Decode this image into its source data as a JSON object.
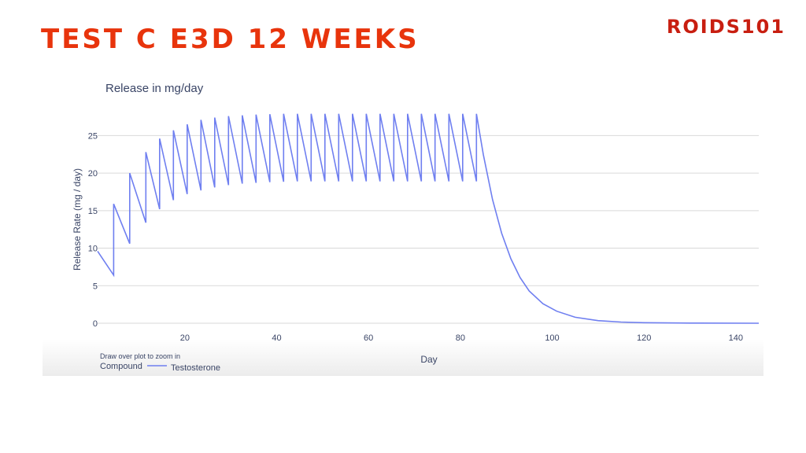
{
  "slide": {
    "title": "TEST C E3D 12 WEEKS",
    "logo": "ROIDS101",
    "title_color": "#e8340c",
    "logo_color": "#c81e10"
  },
  "chart_data": {
    "type": "line",
    "title": "Release in mg/day",
    "xlabel": "Day",
    "ylabel": "Release Rate (mg / day)",
    "xlim": [
      1,
      145
    ],
    "ylim": [
      0,
      28.5
    ],
    "x_ticks": [
      20,
      40,
      60,
      80,
      100,
      120,
      140
    ],
    "y_ticks": [
      0,
      5,
      10,
      15,
      20,
      25
    ],
    "grid": true,
    "hint_text": "Draw over plot to zoom in",
    "legend_title": "Compound",
    "legend_position": "bottom-left",
    "series": [
      {
        "name": "Testosterone",
        "color": "#6f7ff0",
        "x": [
          1,
          4.5,
          4.5,
          8,
          8,
          11.5,
          11.5,
          14.5,
          14.5,
          17.5,
          17.5,
          20.5,
          20.5,
          23.5,
          23.5,
          26.5,
          26.5,
          29.5,
          29.5,
          32.5,
          32.5,
          35.5,
          35.5,
          38.5,
          38.5,
          41.5,
          41.5,
          44.5,
          44.5,
          47.5,
          47.5,
          50.5,
          50.5,
          53.5,
          53.5,
          56.5,
          56.5,
          59.5,
          59.5,
          62.5,
          62.5,
          65.5,
          65.5,
          68.5,
          68.5,
          71.5,
          71.5,
          74.5,
          74.5,
          77.5,
          77.5,
          80.5,
          80.5,
          83.5,
          83.5,
          85,
          87,
          89,
          91,
          93,
          95,
          98,
          101,
          105,
          110,
          115,
          120,
          130,
          145
        ],
        "y": [
          9.6,
          6.4,
          15.9,
          10.6,
          20.0,
          13.4,
          22.8,
          15.2,
          24.6,
          16.4,
          25.7,
          17.2,
          26.5,
          17.7,
          27.1,
          18.1,
          27.4,
          18.4,
          27.6,
          18.6,
          27.7,
          18.7,
          27.8,
          18.8,
          27.85,
          18.85,
          27.9,
          18.9,
          27.9,
          18.9,
          27.9,
          18.9,
          27.9,
          18.9,
          27.9,
          18.9,
          27.9,
          18.9,
          27.9,
          18.9,
          27.9,
          18.9,
          27.9,
          18.9,
          27.9,
          18.9,
          27.9,
          18.9,
          27.9,
          18.9,
          27.9,
          18.9,
          27.9,
          18.9,
          27.9,
          22.5,
          16.5,
          12.0,
          8.6,
          6.1,
          4.3,
          2.6,
          1.6,
          0.8,
          0.35,
          0.16,
          0.07,
          0.02,
          0.0
        ]
      }
    ]
  }
}
